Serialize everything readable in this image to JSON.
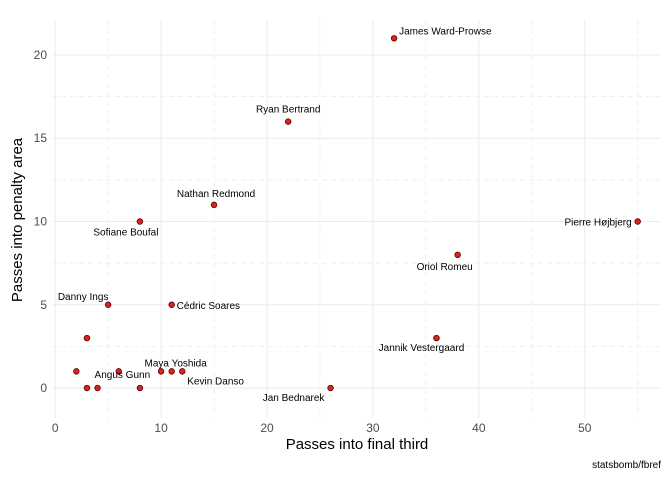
{
  "chart_data": {
    "type": "scatter",
    "xlabel": "Passes into final third",
    "ylabel": "Passes into penalty area",
    "caption": "statsbomb/fbref",
    "xlim": [
      -0.3,
      57.2
    ],
    "ylim": [
      -1.8,
      22.1
    ],
    "x_ticks": [
      0,
      10,
      20,
      30,
      40,
      50
    ],
    "y_ticks": [
      0,
      5,
      10,
      15,
      20
    ],
    "x_tick_labels": [
      "0",
      "10",
      "20",
      "30",
      "40",
      "50"
    ],
    "y_tick_labels": [
      "0",
      "5",
      "10",
      "15",
      "20"
    ],
    "grid": true,
    "colors": {
      "point_fill": "#e0201b",
      "point_stroke": "#5a0000",
      "grid": "#ebebeb"
    },
    "points": [
      {
        "x": 32,
        "y": 21,
        "label": "James Ward-Prowse",
        "anchor": "start",
        "dx": 5,
        "dy": -4
      },
      {
        "x": 22,
        "y": 16,
        "label": "Ryan Bertrand",
        "anchor": "middle",
        "dx": 0,
        "dy": -9
      },
      {
        "x": 15,
        "y": 11,
        "label": "Nathan Redmond",
        "anchor": "middle",
        "dx": 2,
        "dy": -8
      },
      {
        "x": 8,
        "y": 10,
        "label": "Sofiane Boufal",
        "anchor": "middle",
        "dx": -14,
        "dy": 14
      },
      {
        "x": 55,
        "y": 10,
        "label": "Pierre Højbjerg",
        "anchor": "end",
        "dx": -6,
        "dy": 4
      },
      {
        "x": 38,
        "y": 8,
        "label": "Oriol Romeu",
        "anchor": "middle",
        "dx": -13,
        "dy": 15
      },
      {
        "x": 5,
        "y": 5,
        "label": "Danny Ings",
        "anchor": "middle",
        "dx": -25,
        "dy": -5
      },
      {
        "x": 11,
        "y": 5,
        "label": "Cédric Soares",
        "anchor": "start",
        "dx": 5,
        "dy": 4
      },
      {
        "x": 36,
        "y": 3,
        "label": "Jannik Vestergaard",
        "anchor": "middle",
        "dx": -15,
        "dy": 13
      },
      {
        "x": 3,
        "y": 3,
        "label": "",
        "anchor": "middle",
        "dx": 0,
        "dy": 0
      },
      {
        "x": 2,
        "y": 1,
        "label": "",
        "anchor": "middle",
        "dx": 0,
        "dy": 0
      },
      {
        "x": 6,
        "y": 1,
        "label": "",
        "anchor": "middle",
        "dx": 0,
        "dy": 0
      },
      {
        "x": 10,
        "y": 1,
        "label": "",
        "anchor": "middle",
        "dx": 0,
        "dy": 0
      },
      {
        "x": 11,
        "y": 1,
        "label": "Maya Yoshida",
        "anchor": "middle",
        "dx": 4,
        "dy": -5
      },
      {
        "x": 12,
        "y": 1,
        "label": "Kevin Danso",
        "anchor": "start",
        "dx": 5,
        "dy": 13
      },
      {
        "x": 3,
        "y": 0,
        "label": "",
        "anchor": "middle",
        "dx": 0,
        "dy": 0
      },
      {
        "x": 4,
        "y": 0,
        "label": "Angus Gunn",
        "anchor": "start",
        "dx": -3,
        "dy": -10
      },
      {
        "x": 8,
        "y": 0,
        "label": "",
        "anchor": "middle",
        "dx": 0,
        "dy": 0
      },
      {
        "x": 26,
        "y": 0,
        "label": "Jan Bednarek",
        "anchor": "middle",
        "dx": -37,
        "dy": 13
      }
    ]
  }
}
